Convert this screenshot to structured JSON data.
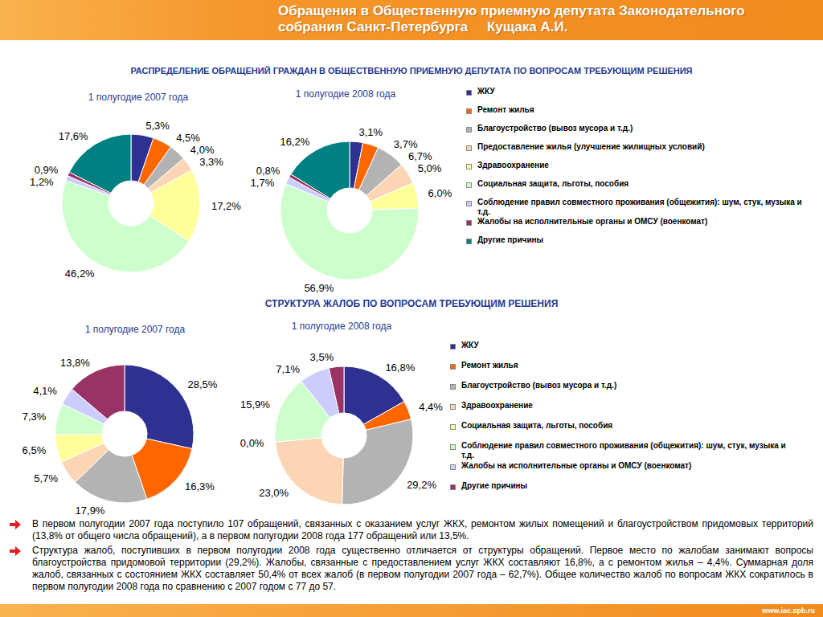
{
  "header": "Обращения в Общественную приемную депутата Законодательного собрания Санкт-Петербурга     Кущака А.И.",
  "sections": [
    "РАСПРЕДЕЛЕНИЕ ОБРАЩЕНИЙ ГРАЖДАН В ОБЩЕСТВЕННУЮ ПРИЕМНУЮ ДЕПУТАТА ПО ВОПРОСАМ ТРЕБУЮЩИМ РЕШЕНИЯ",
    "СТРУКТУРА  ЖАЛОБ  ПО  ВОПРОСАМ  ТРЕБУЮЩИМ  РЕШЕНИЯ"
  ],
  "chart_data": [
    {
      "type": "pie",
      "title": "1 полугодие 2007 года",
      "categories": [
        "ЖКУ",
        "Ремонт жилья",
        "Благоустройство (вывоз мусора и т.д.)",
        "Предоставление жилья (улучшение жилищных условий)",
        "Здравоохранение",
        "Социальная защита, льготы, пособия",
        "Соблюдение правил совместного проживания (общежития): шум, стук, музыка и т.д.",
        "Жалобы на исполнительные органы и ОМСУ (военкомат)",
        "Другие  причины"
      ],
      "values": [
        5.3,
        4.5,
        4.0,
        3.3,
        17.2,
        46.2,
        1.2,
        0.9,
        17.6
      ],
      "value_labels": [
        "5,3%",
        "4,5%",
        "4,0%",
        "3,3%",
        "17,2%",
        "46,2%",
        "1,2%",
        "0,9%",
        "17,6%"
      ],
      "colors": [
        "#2e3192",
        "#ff6600",
        "#b3b3b3",
        "#fcd5b4",
        "#ffff99",
        "#ccffcc",
        "#ccccff",
        "#993366",
        "#008080"
      ],
      "data_labels": true
    },
    {
      "type": "pie",
      "title": "1 полугодие 2008 года",
      "categories": [
        "ЖКУ",
        "Ремонт жилья",
        "Благоустройство (вывоз мусора и т.д.)",
        "Предоставление жилья (улучшение жилищных условий)",
        "Здравоохранение",
        "Социальная защита, льготы, пособия",
        "Соблюдение правил совместного проживания (общежития): шум, стук, музыка и т.д.",
        "Жалобы на исполнительные органы и ОМСУ (военкомат)",
        "Другие  причины"
      ],
      "values": [
        3.1,
        3.7,
        6.7,
        5.0,
        6.0,
        56.9,
        1.7,
        0.8,
        16.2
      ],
      "value_labels": [
        "3,1%",
        "3,7%",
        "6,7%",
        "5,0%",
        "6,0%",
        "56,9%",
        "1,7%",
        "0,8%",
        "16,2%"
      ],
      "colors": [
        "#2e3192",
        "#ff6600",
        "#b3b3b3",
        "#fcd5b4",
        "#ffff99",
        "#ccffcc",
        "#ccccff",
        "#993366",
        "#008080"
      ],
      "data_labels": true,
      "legend": "right"
    },
    {
      "type": "pie",
      "title": "1 полугодие 2007 года",
      "categories": [
        "ЖКУ",
        "Ремонт жилья",
        "Благоустройство (вывоз мусора и т.д.)",
        "Здравоохранение",
        "Социальная защита, льготы, пособия",
        "Соблюдение правил совместного проживания (общежития): шум, стук, музыка и т.д.",
        "Жалобы на исполнительные органы и ОМСУ (военкомат)",
        "Другие  причины"
      ],
      "values": [
        28.5,
        16.3,
        17.9,
        5.7,
        6.5,
        7.3,
        4.1,
        13.8
      ],
      "value_labels": [
        "28,5%",
        "16,3%",
        "17,9%",
        "5,7%",
        "6,5%",
        "7,3%",
        "4,1%",
        "13,8%"
      ],
      "colors": [
        "#2e3192",
        "#ff6600",
        "#b3b3b3",
        "#fcd5b4",
        "#ffff99",
        "#ccffcc",
        "#ccccff",
        "#993366"
      ],
      "data_labels": true
    },
    {
      "type": "pie",
      "title": "1 полугодие 2008 года",
      "categories": [
        "ЖКУ",
        "Ремонт жилья",
        "Благоустройство (вывоз мусора и т.д.)",
        "Здравоохранение",
        "Социальная защита, льготы, пособия",
        "Соблюдение правил совместного проживания (общежития): шум, стук, музыка и т.д.",
        "Жалобы на исполнительные органы и ОМСУ (военкомат)",
        "Другие  причины"
      ],
      "values": [
        16.8,
        4.4,
        29.2,
        23.0,
        0.0,
        15.9,
        7.1,
        3.5
      ],
      "value_labels": [
        "16,8%",
        "4,4%",
        "29,2%",
        "23,0%",
        "0,0%",
        "15,9%",
        "7,1%",
        "3,5%"
      ],
      "colors": [
        "#2e3192",
        "#ff6600",
        "#b3b3b3",
        "#fcd5b4",
        "#ffff99",
        "#ccffcc",
        "#ccccff",
        "#993366"
      ],
      "data_labels": true,
      "legend": "right"
    }
  ],
  "notes": [
    "В первом полугодии 2007 года поступило 107 обращений, связанных с оказанием услуг ЖКХ, ремонтом жилых помещений и благоустройством придомовых территорий (13,8% от общего числа обращений), а в первом полугодии 2008 года 177 обращений или 13,5%.",
    "Структура жалоб, поступивших в первом полугодии 2008 года существенно отличается от структуры обращений. Первое место по жалобам занимают вопросы благоустройства придомовой территории (29,2%). Жалобы, связанные с предоставлением услуг ЖКХ составляют 16,8%, а с ремонтом жилья – 4,4%. Суммарная доля жалоб, связанных с состоянием ЖКХ составляет 50,4% от всех жалоб (в первом полугодии 2007 года – 62,7%). Общее количество жалоб по вопросам ЖКХ сократилось в первом полугодии 2008 года по сравнению с 2007 годом с 77 до 57."
  ],
  "footer": "www.iac.spb.ru"
}
